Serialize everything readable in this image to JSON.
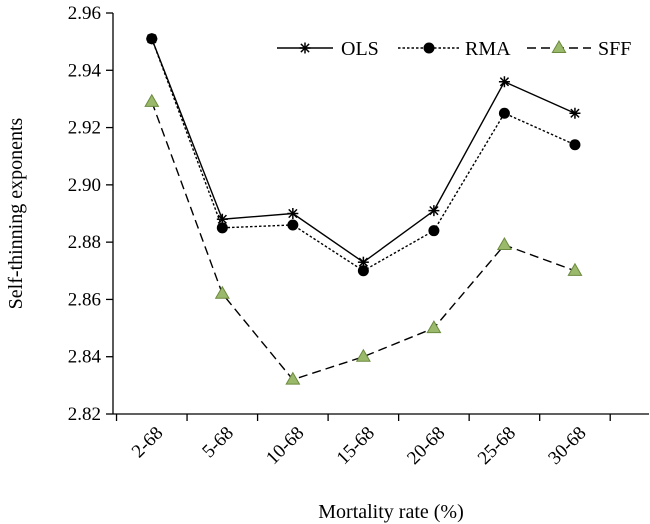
{
  "chart_data": {
    "type": "line",
    "title": "",
    "xlabel": "Mortality rate (%)",
    "ylabel": "Self-thinning exponents",
    "categories": [
      "2-68",
      "5-68",
      "10-68",
      "15-68",
      "20-68",
      "25-68",
      "30-68"
    ],
    "ylim": [
      2.82,
      2.96
    ],
    "yticks": [
      "2.82",
      "2.84",
      "2.86",
      "2.88",
      "2.90",
      "2.92",
      "2.94",
      "2.96"
    ],
    "grid": false,
    "legend_position": "top-right",
    "series": [
      {
        "name": "OLS",
        "values": [
          2.951,
          2.888,
          2.89,
          2.873,
          2.891,
          2.936,
          2.925
        ],
        "color": "#000000",
        "marker": "asterisk",
        "line": "solid"
      },
      {
        "name": "RMA",
        "values": [
          2.951,
          2.885,
          2.886,
          2.87,
          2.884,
          2.925,
          2.914
        ],
        "color": "#000000",
        "marker": "circle",
        "line": "dotted"
      },
      {
        "name": "SFF",
        "values": [
          2.929,
          2.862,
          2.832,
          2.84,
          2.85,
          2.879,
          2.87
        ],
        "color": "#000000",
        "marker": "triangle",
        "marker_color": "#9bb96a",
        "line": "dashed"
      }
    ]
  }
}
